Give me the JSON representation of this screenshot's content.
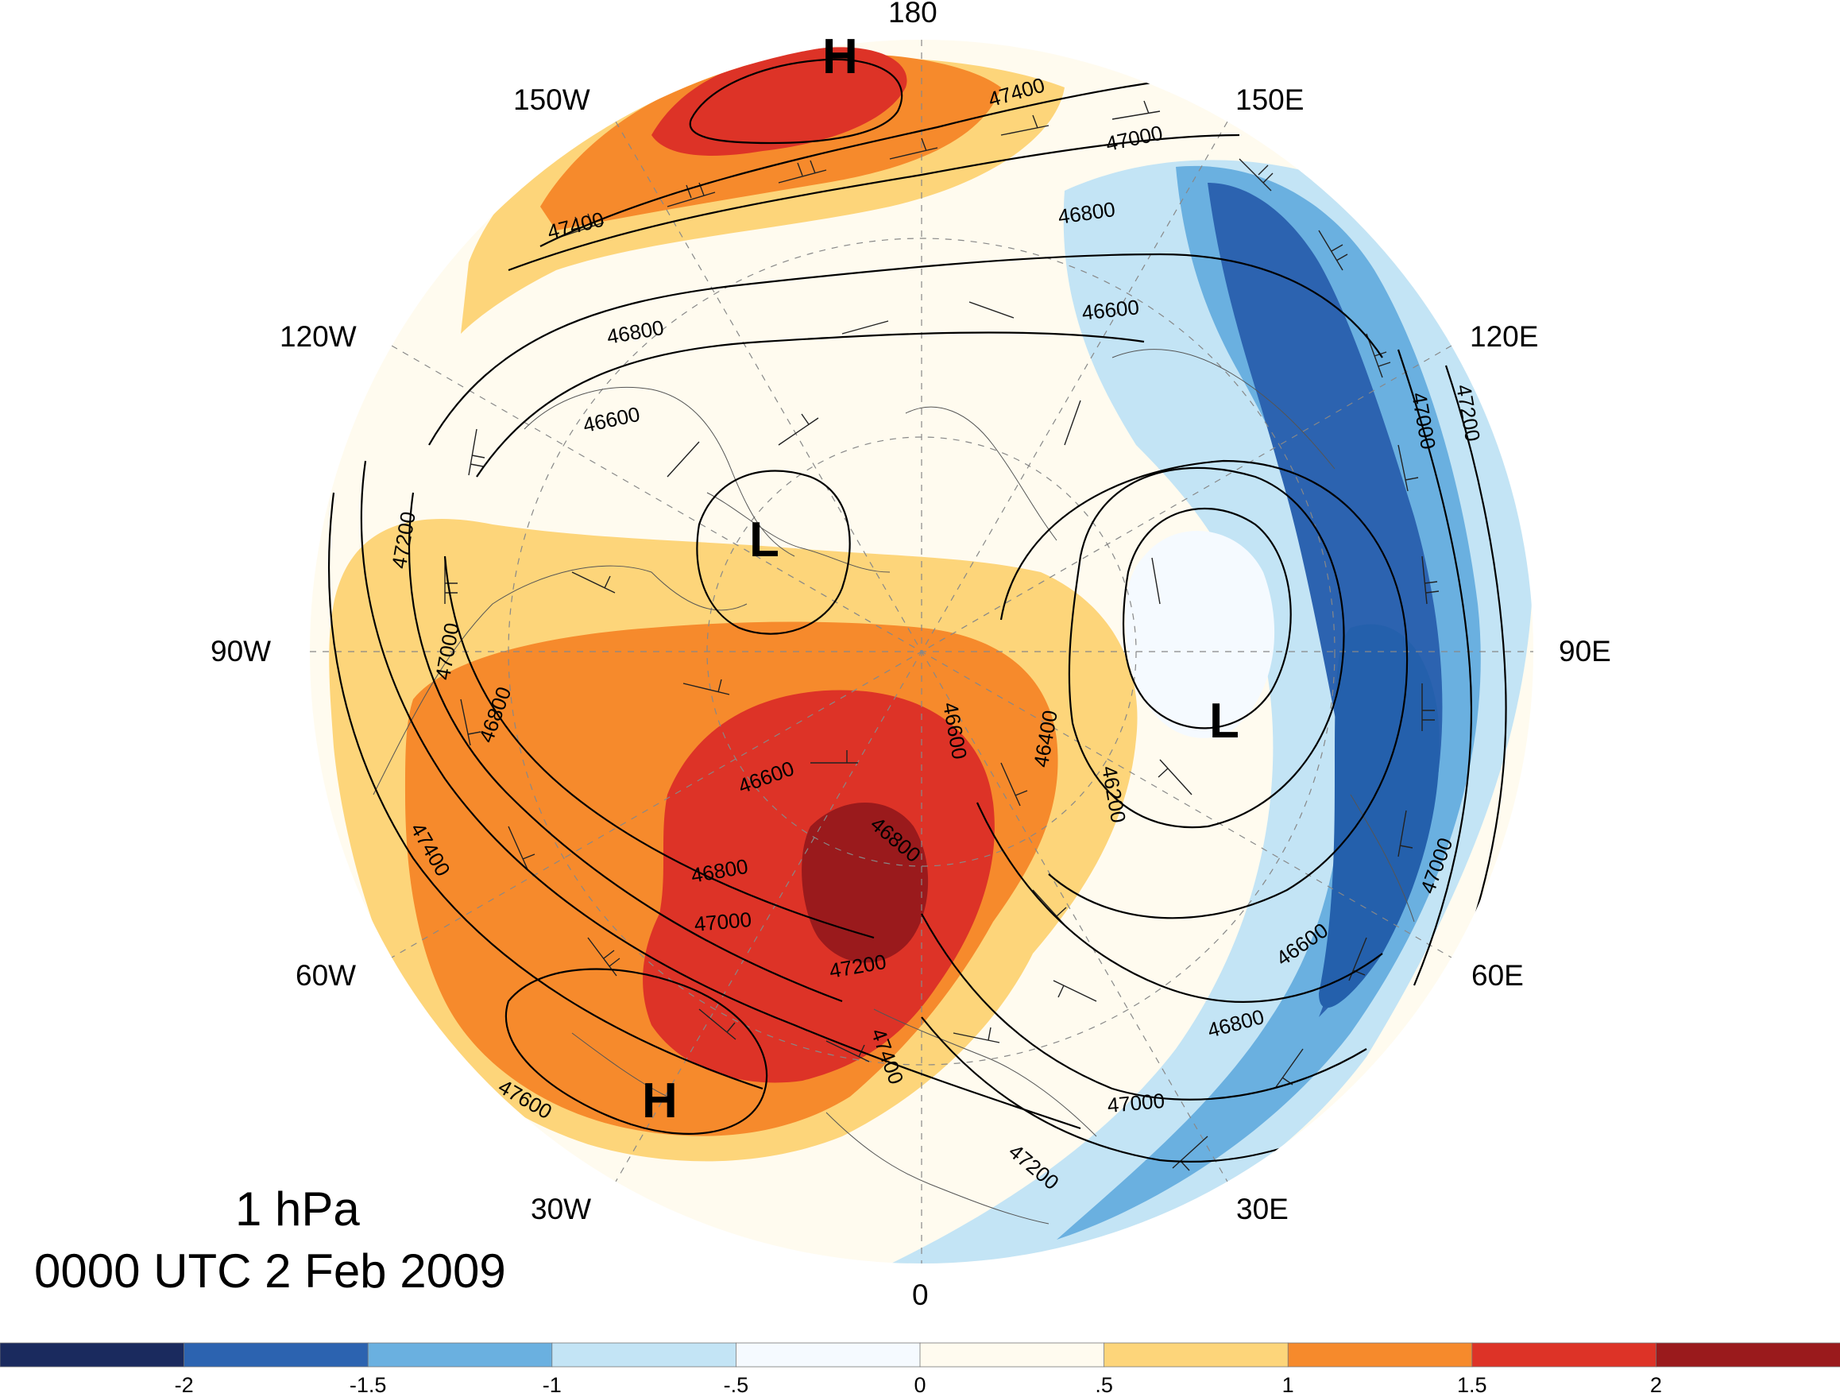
{
  "title": {
    "level": "1 hPa",
    "time": "0000 UTC 2 Feb 2009"
  },
  "longitude_labels": [
    {
      "id": "lon-180",
      "text": "180"
    },
    {
      "id": "lon-150e",
      "text": "150E"
    },
    {
      "id": "lon-120e",
      "text": "120E"
    },
    {
      "id": "lon-90e",
      "text": "90E"
    },
    {
      "id": "lon-60e",
      "text": "60E"
    },
    {
      "id": "lon-30e",
      "text": "30E"
    },
    {
      "id": "lon-0",
      "text": "0"
    },
    {
      "id": "lon-30w",
      "text": "30W"
    },
    {
      "id": "lon-60w",
      "text": "60W"
    },
    {
      "id": "lon-90w",
      "text": "90W"
    },
    {
      "id": "lon-120w",
      "text": "120W"
    },
    {
      "id": "lon-150w",
      "text": "150W"
    }
  ],
  "pressure_centers": [
    {
      "id": "high-pacific",
      "text": "H"
    },
    {
      "id": "low-canada",
      "text": "L"
    },
    {
      "id": "low-siberia",
      "text": "L"
    },
    {
      "id": "high-atlantic",
      "text": "H"
    }
  ],
  "contour_labels": [
    "47400",
    "47400",
    "47000",
    "46800",
    "46600",
    "46800",
    "46600",
    "47200",
    "47000",
    "46800",
    "46600",
    "46600",
    "46400",
    "46200",
    "47400",
    "46800",
    "47000",
    "46800",
    "47200",
    "47400",
    "47600",
    "47200",
    "47000",
    "46600",
    "46800",
    "47000",
    "47200",
    "47000"
  ],
  "colorbar": {
    "colors": [
      "#1a2a5e",
      "#2c63b0",
      "#6ab0e0",
      "#c3e4f5",
      "#f5faff",
      "#fffbef",
      "#fdd57a",
      "#f68a2c",
      "#dd3327",
      "#9a1a1c"
    ],
    "labels": [
      "-2",
      "-1.5",
      "-1",
      "-.5",
      "0",
      ".5",
      "1",
      "1.5",
      "2"
    ]
  },
  "anomaly_colors": {
    "dark_red": "#9a1a1c",
    "red": "#dd3327",
    "orange": "#f68a2c",
    "yellow": "#fdd57a",
    "cream": "#fffbef",
    "pale_blue": "#c3e4f5",
    "light_blue": "#6ab0e0",
    "blue": "#2c63b0"
  }
}
